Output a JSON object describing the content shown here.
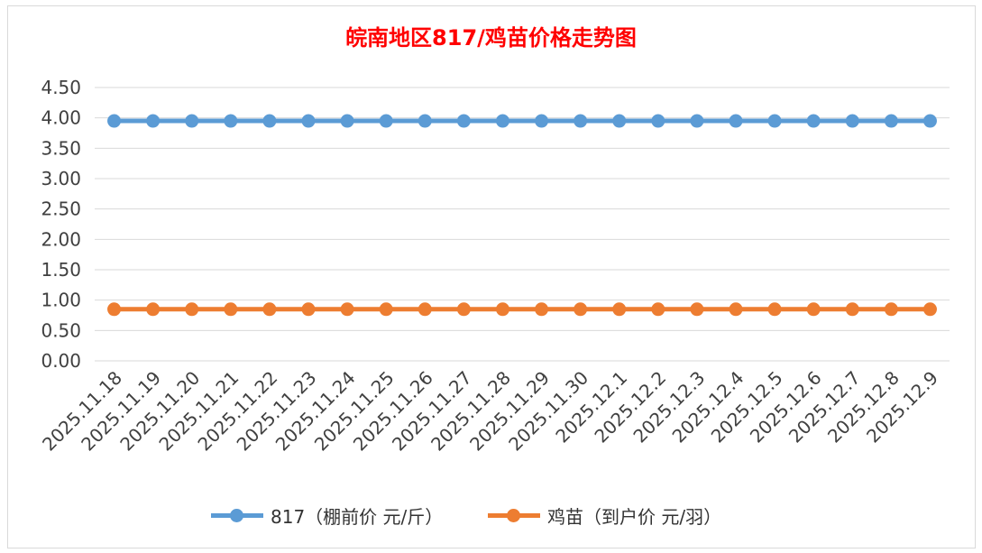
{
  "chart_data": {
    "type": "line",
    "title": "皖南地区817/鸡苗价格走势图",
    "title_color": "#ff0000",
    "xlabel": "",
    "ylabel": "",
    "ylim": [
      0,
      4.5
    ],
    "yticks": [
      "0.00",
      "0.50",
      "1.00",
      "1.50",
      "2.00",
      "2.50",
      "3.00",
      "3.50",
      "4.00",
      "4.50"
    ],
    "categories": [
      "2025.11.18",
      "2025.11.19",
      "2025.11.20",
      "2025.11.21",
      "2025.11.22",
      "2025.11.23",
      "2025.11.24",
      "2025.11.25",
      "2025.11.26",
      "2025.11.27",
      "2025.11.28",
      "2025.11.29",
      "2025.11.30",
      "2025.12.1",
      "2025.12.2",
      "2025.12.3",
      "2025.12.4",
      "2025.12.5",
      "2025.12.6",
      "2025.12.7",
      "2025.12.8",
      "2025.12.9"
    ],
    "series": [
      {
        "name": "817（棚前价 元/斤）",
        "color": "#5b9bd5",
        "values": [
          3.95,
          3.95,
          3.95,
          3.95,
          3.95,
          3.95,
          3.95,
          3.95,
          3.95,
          3.95,
          3.95,
          3.95,
          3.95,
          3.95,
          3.95,
          3.95,
          3.95,
          3.95,
          3.95,
          3.95,
          3.95,
          3.95
        ]
      },
      {
        "name": "鸡苗（到户价 元/羽）",
        "color": "#ed7d31",
        "values": [
          0.85,
          0.85,
          0.85,
          0.85,
          0.85,
          0.85,
          0.85,
          0.85,
          0.85,
          0.85,
          0.85,
          0.85,
          0.85,
          0.85,
          0.85,
          0.85,
          0.85,
          0.85,
          0.85,
          0.85,
          0.85,
          0.85
        ]
      }
    ],
    "grid": true,
    "legend_position": "bottom"
  }
}
